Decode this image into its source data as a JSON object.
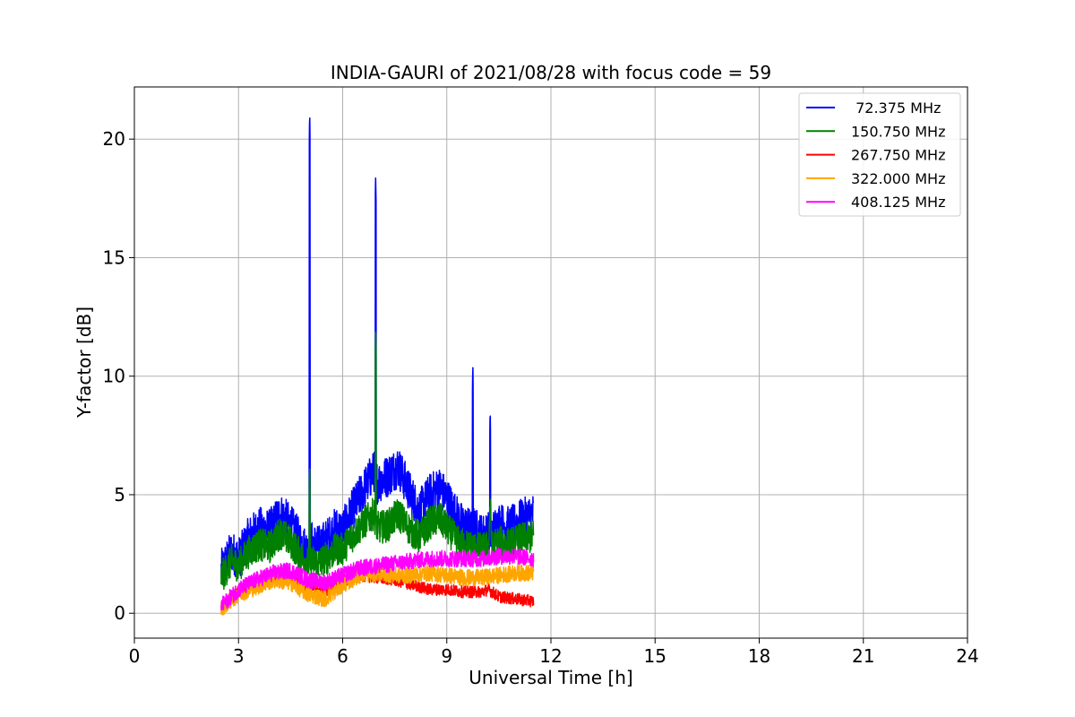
{
  "chart_data": {
    "type": "line",
    "title": "INDIA-GAURI of 2021/08/28 with focus code = 59",
    "xlabel": "Universal Time [h]",
    "ylabel": "Y-factor [dB]",
    "xlim": [
      0,
      24
    ],
    "ylim": [
      -1.05,
      22.2
    ],
    "xticks": [
      0,
      3,
      6,
      9,
      12,
      15,
      18,
      21,
      24
    ],
    "xtick_labels": [
      "0",
      "3",
      "6",
      "9",
      "12",
      "15",
      "18",
      "21",
      "24"
    ],
    "yticks": [
      0,
      5,
      10,
      15,
      20
    ],
    "ytick_labels": [
      "0",
      "5",
      "10",
      "15",
      "20"
    ],
    "grid": true,
    "legend_position": "top-right",
    "series": [
      {
        "name": " 72.375 MHz",
        "color": "#0000ff",
        "band": 0.9,
        "x": [
          2.5,
          2.8,
          3.0,
          3.3,
          3.6,
          3.9,
          4.2,
          4.5,
          4.8,
          5.0,
          5.05,
          5.1,
          5.3,
          5.6,
          5.8,
          6.0,
          6.3,
          6.6,
          6.9,
          6.95,
          7.0,
          7.3,
          7.6,
          7.9,
          8.2,
          8.5,
          8.8,
          9.1,
          9.4,
          9.7,
          9.75,
          9.8,
          10.0,
          10.2,
          10.25,
          10.3,
          10.5,
          10.8,
          11.1,
          11.4,
          11.5
        ],
        "y": [
          1.8,
          2.6,
          2.3,
          3.2,
          3.6,
          3.5,
          4.2,
          3.7,
          3.0,
          2.6,
          21.1,
          3.0,
          2.8,
          3.2,
          3.6,
          3.5,
          4.4,
          5.2,
          6.0,
          18.5,
          5.5,
          5.8,
          6.2,
          5.2,
          4.3,
          5.0,
          5.3,
          4.6,
          3.8,
          3.5,
          10.5,
          3.6,
          3.3,
          3.4,
          8.6,
          3.4,
          3.8,
          3.6,
          3.9,
          4.1,
          4.2
        ]
      },
      {
        "name": "150.750 MHz",
        "color": "#008000",
        "band": 0.7,
        "x": [
          2.5,
          2.8,
          3.0,
          3.3,
          3.6,
          3.9,
          4.2,
          4.5,
          4.8,
          5.0,
          5.05,
          5.1,
          5.3,
          5.6,
          5.8,
          6.0,
          6.3,
          6.6,
          6.9,
          6.95,
          7.0,
          7.3,
          7.6,
          7.9,
          8.2,
          8.5,
          8.8,
          9.1,
          9.4,
          9.7,
          10.0,
          10.2,
          10.25,
          10.3,
          10.5,
          10.8,
          11.1,
          11.4,
          11.5
        ],
        "y": [
          1.5,
          2.2,
          2.0,
          2.6,
          2.9,
          2.8,
          3.4,
          3.0,
          2.4,
          2.1,
          6.3,
          2.2,
          2.1,
          2.4,
          2.7,
          2.7,
          3.3,
          3.8,
          4.2,
          12.0,
          3.6,
          3.7,
          4.2,
          3.6,
          3.2,
          3.8,
          4.0,
          3.4,
          2.9,
          2.8,
          2.7,
          2.8,
          4.6,
          2.8,
          3.0,
          2.9,
          3.1,
          3.2,
          3.3
        ]
      },
      {
        "name": "267.750 MHz",
        "color": "#ff0000",
        "band": 0.25,
        "x": [
          2.5,
          3.0,
          3.5,
          4.0,
          4.5,
          5.0,
          5.5,
          6.0,
          6.5,
          7.0,
          7.5,
          8.0,
          8.5,
          9.0,
          9.5,
          10.0,
          10.2,
          10.5,
          11.0,
          11.5
        ],
        "y": [
          0.3,
          0.9,
          1.3,
          1.6,
          1.5,
          1.1,
          0.9,
          1.3,
          1.6,
          1.5,
          1.4,
          1.2,
          1.0,
          1.0,
          0.9,
          0.9,
          1.0,
          0.7,
          0.6,
          0.5
        ]
      },
      {
        "name": "322.000 MHz",
        "color": "#ffa500",
        "band": 0.35,
        "x": [
          2.5,
          3.0,
          3.5,
          4.0,
          4.5,
          5.0,
          5.5,
          6.0,
          6.5,
          7.0,
          7.5,
          8.0,
          8.5,
          9.0,
          9.5,
          10.0,
          10.5,
          11.0,
          11.5
        ],
        "y": [
          0.2,
          0.8,
          1.1,
          1.4,
          1.3,
          0.8,
          0.6,
          1.2,
          1.6,
          1.7,
          1.6,
          1.6,
          1.7,
          1.6,
          1.5,
          1.5,
          1.6,
          1.7,
          1.7
        ]
      },
      {
        "name": "408.125 MHz",
        "color": "#ff00ff",
        "band": 0.35,
        "x": [
          2.5,
          3.0,
          3.5,
          4.0,
          4.5,
          5.0,
          5.5,
          6.0,
          6.5,
          7.0,
          7.5,
          8.0,
          8.5,
          9.0,
          9.5,
          10.0,
          10.5,
          11.0,
          11.5
        ],
        "y": [
          0.3,
          1.0,
          1.4,
          1.7,
          1.8,
          1.4,
          1.3,
          1.6,
          1.9,
          2.0,
          2.1,
          2.2,
          2.3,
          2.3,
          2.3,
          2.3,
          2.4,
          2.4,
          2.3
        ]
      }
    ]
  }
}
